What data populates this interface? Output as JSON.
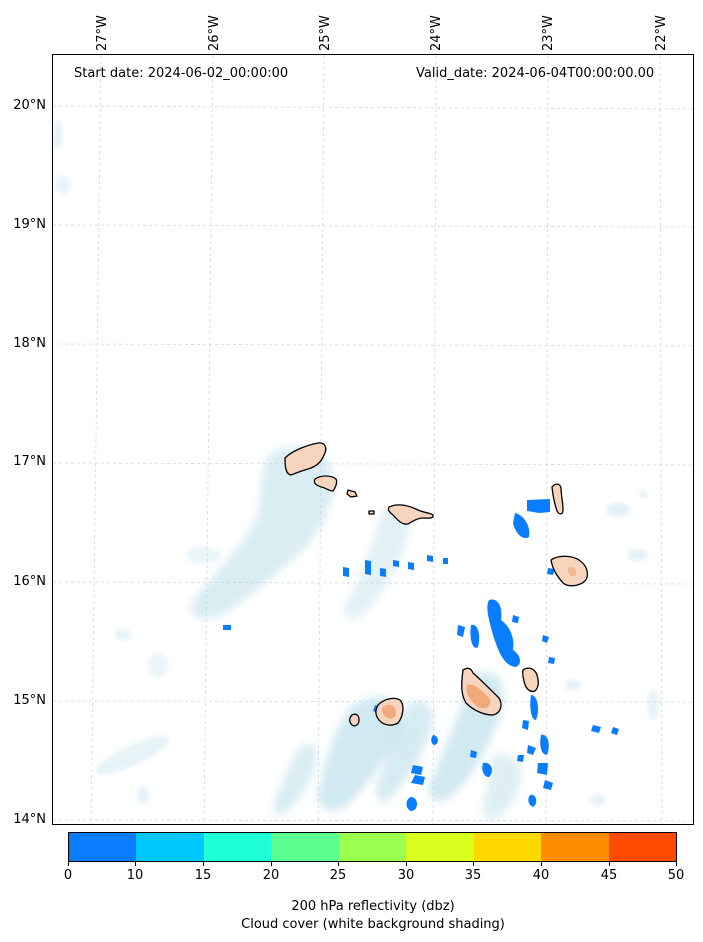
{
  "header": {
    "start_date": "Start date: 2024-06-02_00:00:00",
    "valid_date": "Valid_date: 2024-06-04T00:00:00.00"
  },
  "axes": {
    "longitude_labels": [
      "27°W",
      "26°W",
      "25°W",
      "24°W",
      "23°W",
      "22°W"
    ],
    "latitude_labels": [
      "20°N",
      "19°N",
      "18°N",
      "17°N",
      "16°N",
      "15°N",
      "14°N"
    ],
    "gridlines": "dashed light gray"
  },
  "colorbar": {
    "ticks": [
      "0",
      "10",
      "15",
      "20",
      "25",
      "30",
      "35",
      "40",
      "45",
      "50"
    ],
    "colors": [
      "#0a7dff",
      "#00c8ff",
      "#1effd8",
      "#5aff8f",
      "#9bff50",
      "#d9ff1e",
      "#ffd800",
      "#ff8c00",
      "#ff4b00"
    ],
    "label": "200 hPa reflectivity (dbz)",
    "sublabel": "Cloud cover (white background shading)"
  },
  "map": {
    "cloud_color": "#add8e6",
    "reflectivity_color": "#0a7dff",
    "land_fill": "#f7d4bd",
    "high_reflectivity_fill": "#f0a070"
  }
}
